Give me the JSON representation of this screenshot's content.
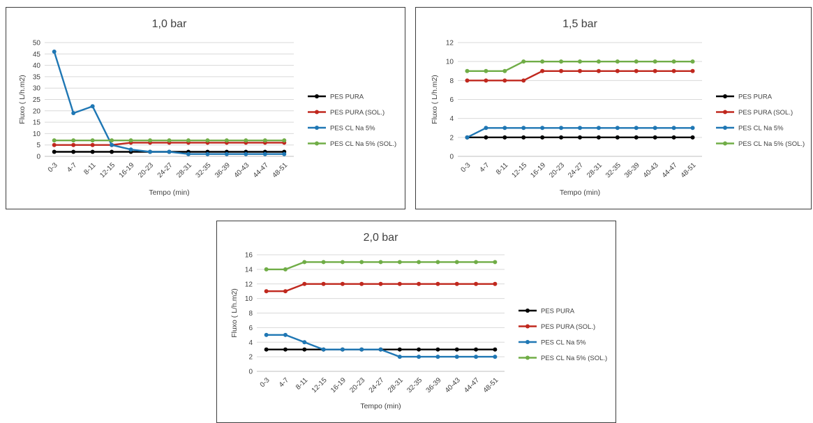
{
  "chart_data": [
    {
      "type": "line",
      "title": "1,0 bar",
      "xlabel": "Tempo  (min)",
      "ylabel": "Fluxo ( L/h.m2)",
      "categories": [
        "0-3",
        "4-7",
        "8-11",
        "12-15",
        "16-19",
        "20-23",
        "24-27",
        "28-31",
        "32-35",
        "36-39",
        "40-43",
        "44-47",
        "48-51"
      ],
      "ylim": [
        0,
        50
      ],
      "yticks": [
        0,
        5,
        10,
        15,
        20,
        25,
        30,
        35,
        40,
        45,
        50
      ],
      "grid": true,
      "legend_position": "right",
      "series": [
        {
          "name": "PES PURA",
          "color": "#000000",
          "values": [
            2,
            2,
            2,
            2,
            2,
            2,
            2,
            2,
            2,
            2,
            2,
            2,
            2
          ]
        },
        {
          "name": "PES PURA (SOL.)",
          "color": "#c0281e",
          "values": [
            5,
            5,
            5,
            5,
            6,
            6,
            6,
            6,
            6,
            6,
            6,
            6,
            6
          ]
        },
        {
          "name": "PES CL Na 5%",
          "color": "#1f77b4",
          "values": [
            46,
            19,
            22,
            5,
            3,
            2,
            2,
            1,
            1,
            1,
            1,
            1,
            1
          ]
        },
        {
          "name": "PES CL Na 5% (SOL.)",
          "color": "#70ad47",
          "values": [
            7,
            7,
            7,
            7,
            7,
            7,
            7,
            7,
            7,
            7,
            7,
            7,
            7
          ]
        }
      ]
    },
    {
      "type": "line",
      "title": "1,5 bar",
      "xlabel": "Tempo  (min)",
      "ylabel": "Fluxo ( L/h.m2)",
      "categories": [
        "0-3",
        "4-7",
        "8-11",
        "12-15",
        "16-19",
        "20-23",
        "24-27",
        "28-31",
        "32-35",
        "36-39",
        "40-43",
        "44-47",
        "48-51"
      ],
      "ylim": [
        0,
        12
      ],
      "yticks": [
        0,
        2,
        4,
        6,
        8,
        10,
        12
      ],
      "grid": true,
      "legend_position": "right",
      "series": [
        {
          "name": "PES PURA",
          "color": "#000000",
          "values": [
            2,
            2,
            2,
            2,
            2,
            2,
            2,
            2,
            2,
            2,
            2,
            2,
            2
          ]
        },
        {
          "name": "PES PURA (SOL.)",
          "color": "#c0281e",
          "values": [
            8,
            8,
            8,
            8,
            9,
            9,
            9,
            9,
            9,
            9,
            9,
            9,
            9
          ]
        },
        {
          "name": "PES CL Na 5%",
          "color": "#1f77b4",
          "values": [
            2,
            3,
            3,
            3,
            3,
            3,
            3,
            3,
            3,
            3,
            3,
            3,
            3
          ]
        },
        {
          "name": "PES CL Na 5% (SOL.)",
          "color": "#70ad47",
          "values": [
            9,
            9,
            9,
            10,
            10,
            10,
            10,
            10,
            10,
            10,
            10,
            10,
            10
          ]
        }
      ]
    },
    {
      "type": "line",
      "title": "2,0 bar",
      "xlabel": "Tempo  (min)",
      "ylabel": "Fluxo ( L/h.m2)",
      "categories": [
        "0-3",
        "4-7",
        "8-11",
        "12-15",
        "16-19",
        "20-23",
        "24-27",
        "28-31",
        "32-35",
        "36-39",
        "40-43",
        "44-47",
        "48-51"
      ],
      "ylim": [
        0,
        16
      ],
      "yticks": [
        0,
        2,
        4,
        6,
        8,
        10,
        12,
        14,
        16
      ],
      "grid": true,
      "legend_position": "right",
      "series": [
        {
          "name": "PES PURA",
          "color": "#000000",
          "values": [
            3,
            3,
            3,
            3,
            3,
            3,
            3,
            3,
            3,
            3,
            3,
            3,
            3
          ]
        },
        {
          "name": "PES PURA (SOL.)",
          "color": "#c0281e",
          "values": [
            11,
            11,
            12,
            12,
            12,
            12,
            12,
            12,
            12,
            12,
            12,
            12,
            12
          ]
        },
        {
          "name": "PES CL Na 5%",
          "color": "#1f77b4",
          "values": [
            5,
            5,
            4,
            3,
            3,
            3,
            3,
            2,
            2,
            2,
            2,
            2,
            2
          ]
        },
        {
          "name": "PES CL Na 5% (SOL.)",
          "color": "#70ad47",
          "values": [
            14,
            14,
            15,
            15,
            15,
            15,
            15,
            15,
            15,
            15,
            15,
            15,
            15
          ]
        }
      ]
    }
  ]
}
